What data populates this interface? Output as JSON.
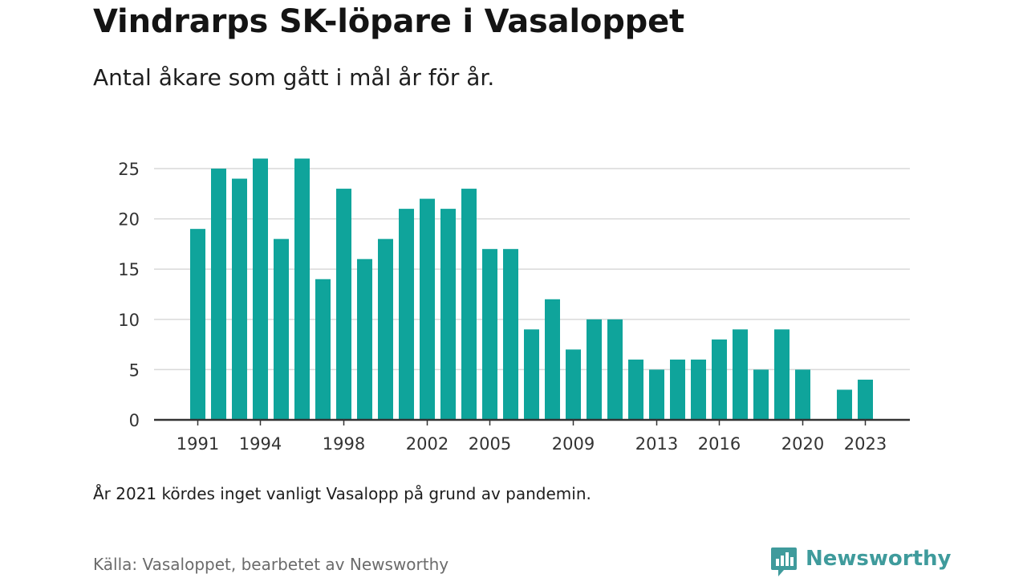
{
  "header": {
    "title": "Vindrarps SK-löpare i Vasaloppet",
    "subtitle": "Antal åkare som gått i mål år för år."
  },
  "footer": {
    "note": "År 2021 kördes inget vanligt Vasalopp på grund av pandemin.",
    "source": "Källa: Vasaloppet, bearbetet av Newsworthy",
    "brand": "Newsworthy",
    "brand_icon": "newsworthy-logo-icon",
    "brand_color": "#3f9b9c"
  },
  "chart_data": {
    "type": "bar",
    "title": "Vindrarps SK-löpare i Vasaloppet",
    "subtitle": "Antal åkare som gått i mål år för år.",
    "xlabel": "",
    "ylabel": "",
    "categories": [
      1991,
      1992,
      1993,
      1994,
      1995,
      1996,
      1997,
      1998,
      1999,
      2000,
      2001,
      2002,
      2003,
      2004,
      2005,
      2006,
      2007,
      2008,
      2009,
      2010,
      2011,
      2012,
      2013,
      2014,
      2015,
      2016,
      2017,
      2018,
      2019,
      2020,
      2021,
      2022,
      2023
    ],
    "values": [
      19,
      25,
      24,
      26,
      18,
      26,
      14,
      23,
      16,
      18,
      21,
      22,
      21,
      23,
      17,
      17,
      9,
      12,
      7,
      10,
      10,
      6,
      5,
      6,
      6,
      8,
      9,
      5,
      9,
      5,
      null,
      3,
      4
    ],
    "x_tick_labels": [
      1991,
      1994,
      1998,
      2002,
      2005,
      2009,
      2013,
      2016,
      2020,
      2023
    ],
    "y_ticks": [
      0,
      5,
      10,
      15,
      20,
      25
    ],
    "ylim": [
      0,
      27
    ],
    "grid": true,
    "bar_color": "#0fa49b",
    "grid_color": "#d9d9d9",
    "axis_color": "#333333"
  }
}
